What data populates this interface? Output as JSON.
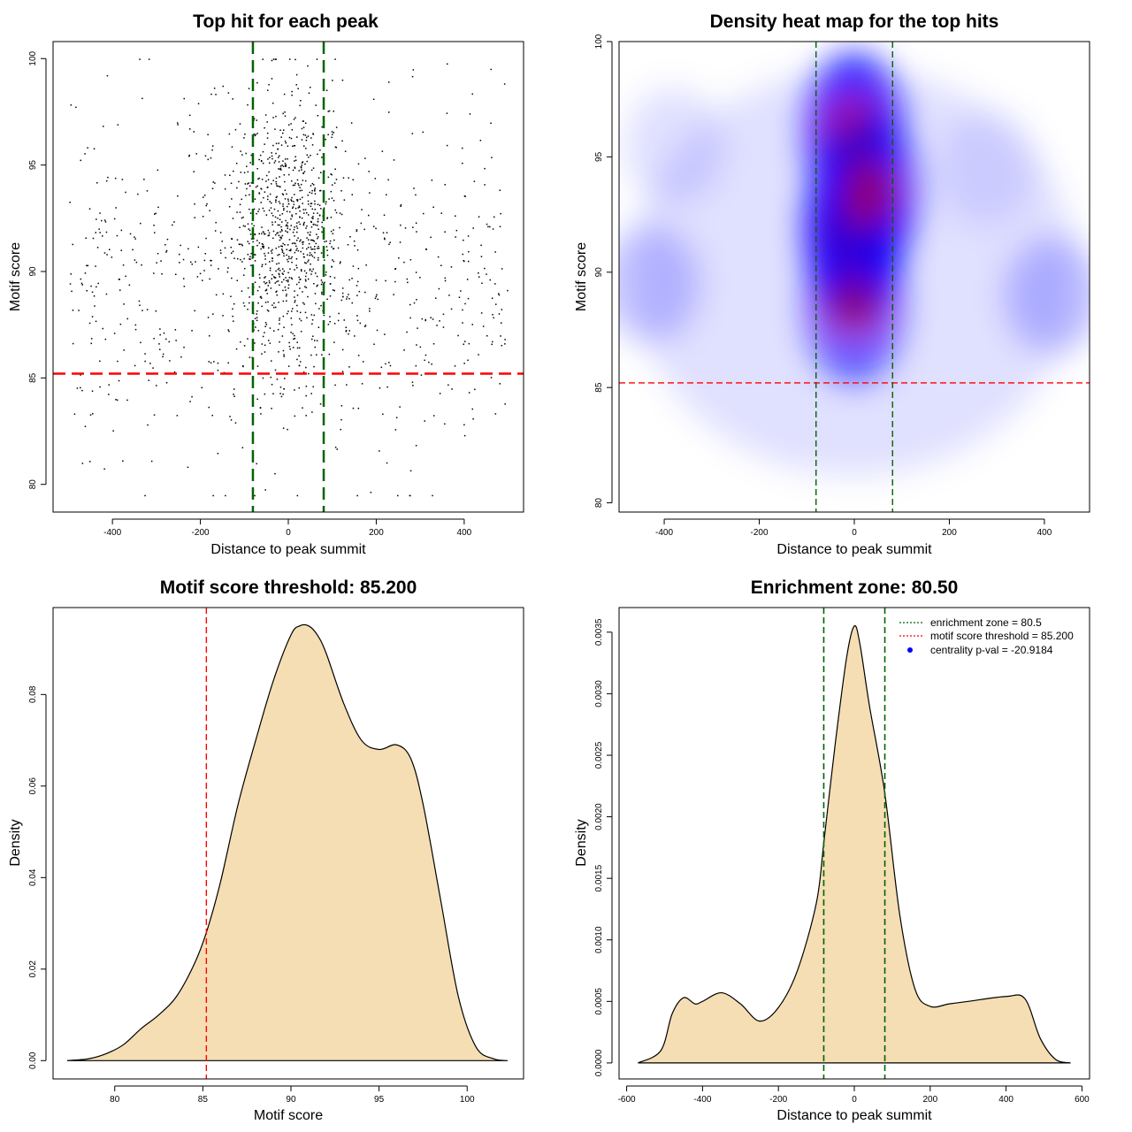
{
  "colors": {
    "thr": "#ff0000",
    "zone": "#006400",
    "fill": "#f5deb3",
    "point": "#000000",
    "heat_low": "#ffffff",
    "heat_mid": "#0000ff",
    "heat_high": "#ff0000",
    "legend_point": "#0000ff"
  },
  "chart_data": [
    {
      "type": "scatter",
      "title": "Top hit for each peak",
      "xlabel": "Distance to peak summit",
      "ylabel": "Motif score",
      "xlim": [
        -535,
        535
      ],
      "ylim": [
        78.7,
        100.8
      ],
      "xticks": [
        -400,
        -200,
        0,
        200,
        400
      ],
      "yticks": [
        80,
        85,
        90,
        95,
        100
      ],
      "hline": 85.2,
      "vlines": [
        -80.5,
        80.5
      ],
      "n_points": 1500,
      "x_range": [
        -500,
        500
      ],
      "y_range": [
        79.5,
        100
      ]
    },
    {
      "type": "heatmap",
      "title": "Density heat map for the top hits",
      "xlabel": "Distance to peak summit",
      "ylabel": "Motif score",
      "xlim": [
        -495,
        495
      ],
      "ylim": [
        79.6,
        100
      ],
      "xticks": [
        -400,
        -200,
        0,
        200,
        400
      ],
      "yticks": [
        80,
        85,
        90,
        95,
        100
      ],
      "hline": 85.2,
      "vlines": [
        -80.5,
        80.5
      ],
      "hotspots": [
        {
          "x": 0,
          "y": 91.8,
          "weight": 1.0
        },
        {
          "x": 0,
          "y": 96.0,
          "weight": 0.75
        },
        {
          "x": 0,
          "y": 88.5,
          "weight": 0.55
        },
        {
          "x": 30,
          "y": 93.5,
          "weight": 0.6
        },
        {
          "x": -430,
          "y": 89.5,
          "weight": 0.18
        },
        {
          "x": 420,
          "y": 89.0,
          "weight": 0.2
        },
        {
          "x": -380,
          "y": 95.5,
          "weight": 0.1
        },
        {
          "x": 280,
          "y": 94.5,
          "weight": 0.08
        }
      ]
    },
    {
      "type": "area",
      "title": "Motif score threshold: 85.200",
      "xlabel": "Motif score",
      "ylabel": "Density",
      "xlim": [
        76.5,
        103.2
      ],
      "ylim": [
        -0.004,
        0.099
      ],
      "xticks": [
        80,
        85,
        90,
        95,
        100
      ],
      "yticks": [
        0.0,
        0.02,
        0.04,
        0.06,
        0.08
      ],
      "ytick_labels": [
        "0.00",
        "0.02",
        "0.04",
        "0.06",
        "0.08"
      ],
      "vline": 85.2,
      "x": [
        77.3,
        78.5,
        79.5,
        80.5,
        81.5,
        82.5,
        83.5,
        84.5,
        85.2,
        86.0,
        87.0,
        88.0,
        89.0,
        90.0,
        90.5,
        91.0,
        91.5,
        92.0,
        93.0,
        94.0,
        95.0,
        96.0,
        96.8,
        97.5,
        98.5,
        99.5,
        100.5,
        101.5,
        102.3
      ],
      "y": [
        0.0,
        0.0004,
        0.0015,
        0.0035,
        0.007,
        0.01,
        0.014,
        0.021,
        0.028,
        0.039,
        0.056,
        0.07,
        0.083,
        0.093,
        0.095,
        0.095,
        0.093,
        0.089,
        0.078,
        0.07,
        0.068,
        0.069,
        0.066,
        0.056,
        0.035,
        0.014,
        0.003,
        0.0004,
        0.0
      ]
    },
    {
      "type": "area",
      "title": "Enrichment zone: 80.50",
      "xlabel": "Distance to peak summit",
      "ylabel": "Density",
      "xlim": [
        -620,
        620
      ],
      "ylim": [
        -0.00013,
        0.0037
      ],
      "xticks": [
        -600,
        -400,
        -200,
        0,
        200,
        400,
        600
      ],
      "yticks": [
        0.0,
        0.0005,
        0.001,
        0.0015,
        0.002,
        0.0025,
        0.003,
        0.0035
      ],
      "ytick_labels": [
        "0.0000",
        "0.0005",
        "0.0010",
        "0.0015",
        "0.0020",
        "0.0025",
        "0.0030",
        "0.0035"
      ],
      "vlines": [
        -80.5,
        80.5
      ],
      "x": [
        -570,
        -510,
        -480,
        -450,
        -420,
        -400,
        -350,
        -300,
        -250,
        -200,
        -150,
        -100,
        -80,
        -50,
        -20,
        0,
        15,
        40,
        80,
        120,
        160,
        200,
        250,
        300,
        400,
        450,
        490,
        530,
        570
      ],
      "y": [
        0.0,
        0.0001,
        0.0004,
        0.00053,
        0.00048,
        0.0005,
        0.00057,
        0.00048,
        0.00034,
        0.00045,
        0.00075,
        0.0013,
        0.0018,
        0.0026,
        0.0033,
        0.00355,
        0.0034,
        0.0029,
        0.0022,
        0.0012,
        0.0006,
        0.00046,
        0.00048,
        0.0005,
        0.00054,
        0.00052,
        0.0002,
        3e-05,
        0.0
      ],
      "legend": [
        {
          "label": "enrichment zone = 80.5",
          "style": "dotted",
          "color": "#006400"
        },
        {
          "label": "motif score threshold = 85.200",
          "style": "dotted",
          "color": "#ff0000"
        },
        {
          "label": "centrality p-val = -20.9184",
          "style": "point",
          "color": "#0000ff"
        }
      ],
      "legend_position": "top-right"
    }
  ]
}
